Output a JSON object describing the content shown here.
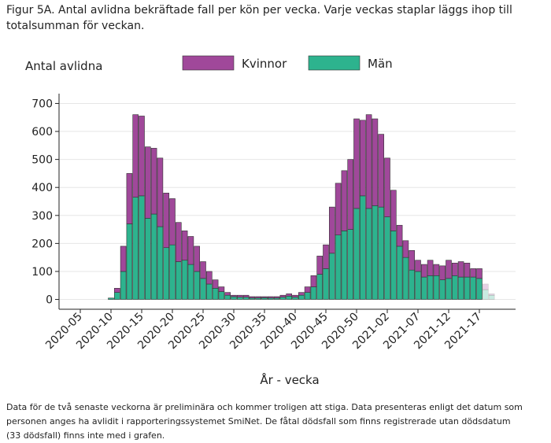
{
  "chart_data": {
    "type": "bar",
    "stacked": true,
    "title": [
      "Figur 5A. Antal avlidna bekräftade fall per kön per vecka. Varje veckas staplar läggs ihop till",
      "totalsumman för veckan."
    ],
    "y_label": "Antal avlidna",
    "x_label": "År - vecka",
    "footnote": [
      "Data för de två senaste veckorna är preliminära och kommer troligen att stiga. Data presenteras enligt det datum som",
      "personen anges ha avlidit i rapporteringssystemet SmiNet. De fåtal dödsfall som finns registrerade utan dödsdatum",
      "(33 dödsfall) finns inte med i grafen."
    ],
    "categories": [
      "2020-05",
      null,
      null,
      null,
      null,
      "2020-10",
      null,
      null,
      null,
      null,
      "2020-15",
      null,
      null,
      null,
      null,
      "2020-20",
      null,
      null,
      null,
      null,
      "2020-25",
      null,
      null,
      null,
      null,
      "2020-30",
      null,
      null,
      null,
      null,
      "2020-35",
      null,
      null,
      null,
      null,
      "2020-40",
      null,
      null,
      null,
      null,
      "2020-45",
      null,
      null,
      null,
      null,
      "2020-50",
      null,
      null,
      null,
      null,
      "2021-02",
      null,
      null,
      null,
      null,
      "2021-07",
      null,
      null,
      null,
      null,
      "2021-12",
      null,
      null,
      null,
      null,
      "2021-17",
      null,
      null
    ],
    "series": [
      {
        "name": "Män",
        "color": "#2db38e",
        "values": [
          0,
          0,
          0,
          0,
          0,
          5,
          25,
          100,
          270,
          365,
          370,
          290,
          305,
          260,
          185,
          195,
          135,
          140,
          125,
          100,
          75,
          55,
          40,
          28,
          15,
          10,
          8,
          8,
          5,
          5,
          6,
          5,
          5,
          8,
          12,
          8,
          15,
          25,
          45,
          90,
          110,
          165,
          230,
          245,
          250,
          325,
          370,
          325,
          335,
          330,
          295,
          245,
          190,
          150,
          105,
          100,
          80,
          85,
          85,
          70,
          75,
          85,
          80,
          80,
          80,
          75,
          35,
          15
        ]
      },
      {
        "name": "Kvinnor",
        "color": "#a0489a",
        "values": [
          0,
          0,
          0,
          0,
          0,
          0,
          15,
          90,
          180,
          295,
          285,
          255,
          235,
          245,
          195,
          165,
          140,
          105,
          100,
          90,
          60,
          45,
          30,
          17,
          10,
          5,
          7,
          7,
          5,
          5,
          4,
          5,
          5,
          7,
          8,
          7,
          10,
          20,
          40,
          65,
          85,
          165,
          185,
          215,
          250,
          320,
          270,
          335,
          310,
          260,
          210,
          145,
          75,
          60,
          70,
          40,
          45,
          55,
          40,
          50,
          65,
          45,
          55,
          50,
          30,
          35,
          20,
          5
        ]
      }
    ],
    "ylim": [
      -35,
      735
    ],
    "yticks": [
      0,
      100,
      200,
      300,
      400,
      500,
      600,
      700
    ],
    "grid": true
  }
}
